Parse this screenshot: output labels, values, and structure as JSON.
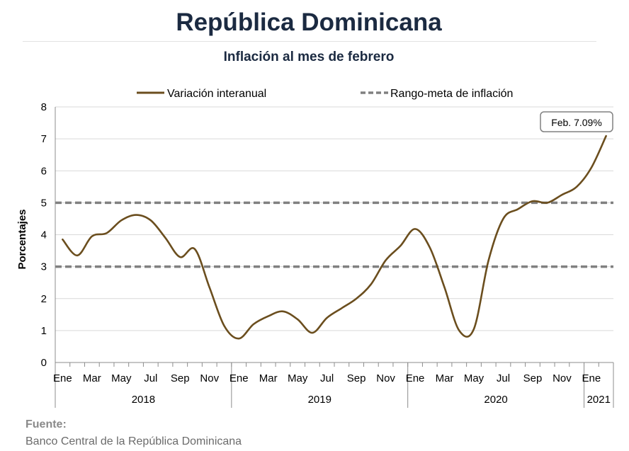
{
  "title": "República Dominicana",
  "subtitle": "Inflación al mes de febrero",
  "source": {
    "label": "Fuente:",
    "text": "Banco Central de la República Dominicana"
  },
  "chart_data": {
    "type": "line",
    "ylabel": "Porcentajes",
    "ylim": [
      0,
      8
    ],
    "yticks": [
      "0",
      "1",
      "2",
      "3",
      "4",
      "5",
      "6",
      "7",
      "8"
    ],
    "grid": "horizontal",
    "legend_position": "top",
    "x_labels": [
      "Ene",
      "Mar",
      "May",
      "Jul",
      "Sep",
      "Nov",
      "Ene",
      "Mar",
      "May",
      "Jul",
      "Sep",
      "Nov",
      "Ene",
      "Mar",
      "May",
      "Jul",
      "Sep",
      "Nov",
      "Ene"
    ],
    "years": [
      "2018",
      "2019",
      "2020",
      "2021"
    ],
    "series": [
      {
        "name": "Variación interanual",
        "color": "#6b4e1e",
        "x": [
          "2018-01",
          "2018-02",
          "2018-03",
          "2018-04",
          "2018-05",
          "2018-06",
          "2018-07",
          "2018-08",
          "2018-09",
          "2018-10",
          "2018-11",
          "2018-12",
          "2019-01",
          "2019-02",
          "2019-03",
          "2019-04",
          "2019-05",
          "2019-06",
          "2019-07",
          "2019-08",
          "2019-09",
          "2019-10",
          "2019-11",
          "2019-12",
          "2020-01",
          "2020-02",
          "2020-03",
          "2020-04",
          "2020-05",
          "2020-06",
          "2020-07",
          "2020-08",
          "2020-09",
          "2020-10",
          "2020-11",
          "2020-12",
          "2021-01",
          "2021-02"
        ],
        "values": [
          3.85,
          3.35,
          3.95,
          4.05,
          4.45,
          4.62,
          4.45,
          3.9,
          3.3,
          3.55,
          2.35,
          1.15,
          0.75,
          1.2,
          1.45,
          1.6,
          1.35,
          0.93,
          1.4,
          1.7,
          2.0,
          2.45,
          3.2,
          3.65,
          4.18,
          3.6,
          2.35,
          1.0,
          1.05,
          3.2,
          4.5,
          4.8,
          5.05,
          5.0,
          5.25,
          5.5,
          6.1,
          7.09
        ]
      },
      {
        "name": "Rango-meta de inflación",
        "color": "#808080",
        "style": "dashed",
        "bounds": [
          3,
          5
        ]
      }
    ],
    "annotation": "Feb. 7.09%"
  }
}
